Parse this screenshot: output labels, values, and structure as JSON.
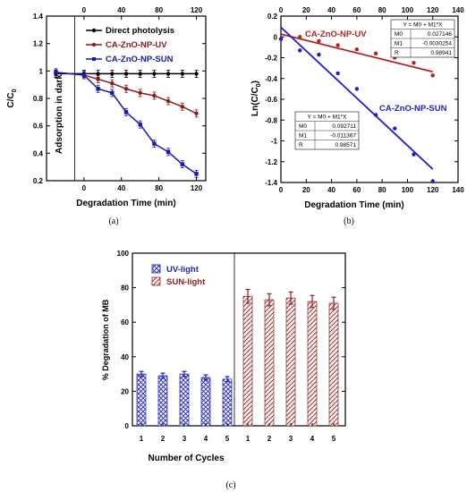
{
  "chart_data": [
    {
      "panel": "(a)",
      "type": "line",
      "xlabel": "Degradation Time (min)",
      "ylabel": "C/C",
      "ylabel_sub": "0",
      "xlim": [
        -40,
        130
      ],
      "ylim": [
        0.2,
        1.4
      ],
      "x_ticks_bottom": [
        0,
        40,
        80,
        120
      ],
      "x_ticks_top": [
        0,
        40,
        80,
        120
      ],
      "y_ticks": [
        0.2,
        0.4,
        0.6,
        0.8,
        1,
        1.2,
        1.4
      ],
      "annotation": "Adsorption in dark",
      "series": [
        {
          "name": "Direct photolysis",
          "color": "#000000",
          "marker": "circle",
          "x": [
            -30,
            0,
            15,
            30,
            45,
            60,
            75,
            90,
            105,
            120
          ],
          "y": [
            0.98,
            0.98,
            0.98,
            0.98,
            0.98,
            0.98,
            0.98,
            0.98,
            0.98,
            0.98
          ]
        },
        {
          "name": "CA-ZnO-NP-UV",
          "color": "#8b1a1a",
          "marker": "circle",
          "x": [
            -30,
            0,
            15,
            30,
            45,
            60,
            75,
            90,
            105,
            120
          ],
          "y": [
            0.99,
            0.97,
            0.94,
            0.91,
            0.87,
            0.84,
            0.82,
            0.78,
            0.74,
            0.69
          ]
        },
        {
          "name": "CA-ZnO-NP-SUN",
          "color": "#1a1aa6",
          "marker": "square",
          "x": [
            -30,
            0,
            15,
            30,
            45,
            60,
            75,
            90,
            105,
            120
          ],
          "y": [
            0.99,
            0.97,
            0.87,
            0.84,
            0.7,
            0.61,
            0.47,
            0.41,
            0.32,
            0.25
          ]
        }
      ]
    },
    {
      "panel": "(b)",
      "type": "scatter",
      "xlabel": "Degradation  Time (min)",
      "ylabel": "Ln(C/C",
      "ylabel_sub": "0",
      "ylabel_end": ")",
      "xlim": [
        0,
        140
      ],
      "ylim": [
        -1.4,
        0.2
      ],
      "x_ticks_bottom": [
        0,
        20,
        40,
        60,
        80,
        100,
        120,
        140
      ],
      "x_ticks_top": [
        0,
        20,
        40,
        60,
        80,
        100,
        120,
        140
      ],
      "y_ticks": [
        -1.4,
        -1.2,
        -1,
        -0.8,
        -0.6,
        -0.4,
        -0.2,
        0,
        0.2
      ],
      "series": [
        {
          "name": "CA-ZnO-NP-UV",
          "color": "#b22222",
          "x": [
            0,
            15,
            30,
            45,
            60,
            75,
            90,
            105,
            120
          ],
          "y": [
            -0.02,
            0.0,
            -0.04,
            -0.08,
            -0.12,
            -0.16,
            -0.2,
            -0.25,
            -0.37
          ],
          "fit": {
            "M0": 0.027146,
            "M1": -0.0030254
          }
        },
        {
          "name": "CA-ZnO-NP-SUN",
          "color": "#1f1fc8",
          "x": [
            0,
            15,
            30,
            45,
            60,
            75,
            90,
            105,
            120
          ],
          "y": [
            -0.02,
            -0.13,
            -0.17,
            -0.35,
            -0.5,
            -0.75,
            -0.88,
            -1.13,
            -1.39
          ],
          "fit": {
            "M0": 0.092711,
            "M1": -0.011367
          }
        }
      ],
      "fit_tables": [
        {
          "equation": "Y = M0 + M1*X",
          "rows": [
            [
              "M0",
              "0.027146"
            ],
            [
              "M1",
              "-0.0030254"
            ],
            [
              "R",
              "0.98941"
            ]
          ]
        },
        {
          "equation": "Y = M0 + M1*X",
          "rows": [
            [
              "M0",
              "0.092711"
            ],
            [
              "M1",
              "-0.011367"
            ],
            [
              "R",
              "0.98571"
            ]
          ]
        }
      ]
    },
    {
      "panel": "(c)",
      "type": "bar",
      "xlabel": "Number of Cycles",
      "ylabel": "% Degradation of MB",
      "ylim": [
        0,
        100
      ],
      "y_ticks": [
        0,
        20,
        40,
        60,
        80,
        100
      ],
      "categories": [
        "1",
        "2",
        "3",
        "4",
        "5"
      ],
      "series": [
        {
          "name": "UV-light",
          "color": "#2222aa",
          "values": [
            30,
            29,
            30,
            28,
            27
          ],
          "errors": [
            1.5,
            1.5,
            1.5,
            1.5,
            1.5
          ]
        },
        {
          "name": "SUN-light",
          "color": "#8b2222",
          "values": [
            75,
            73,
            74,
            72,
            71
          ],
          "errors": [
            4,
            3.5,
            3.5,
            3.5,
            3.5
          ]
        }
      ]
    }
  ],
  "legend_a": {
    "items": [
      "Direct photolysis",
      "CA-ZnO-NP-UV",
      "CA-ZnO-NP-SUN"
    ]
  },
  "labels_b": {
    "uv": "CA-ZnO-NP-UV",
    "sun": "CA-ZnO-NP-SUN"
  },
  "legend_c": {
    "items": [
      "UV-light",
      "SUN-light"
    ]
  },
  "captions": {
    "a": "(a)",
    "b": "(b)",
    "c": "(c)"
  }
}
